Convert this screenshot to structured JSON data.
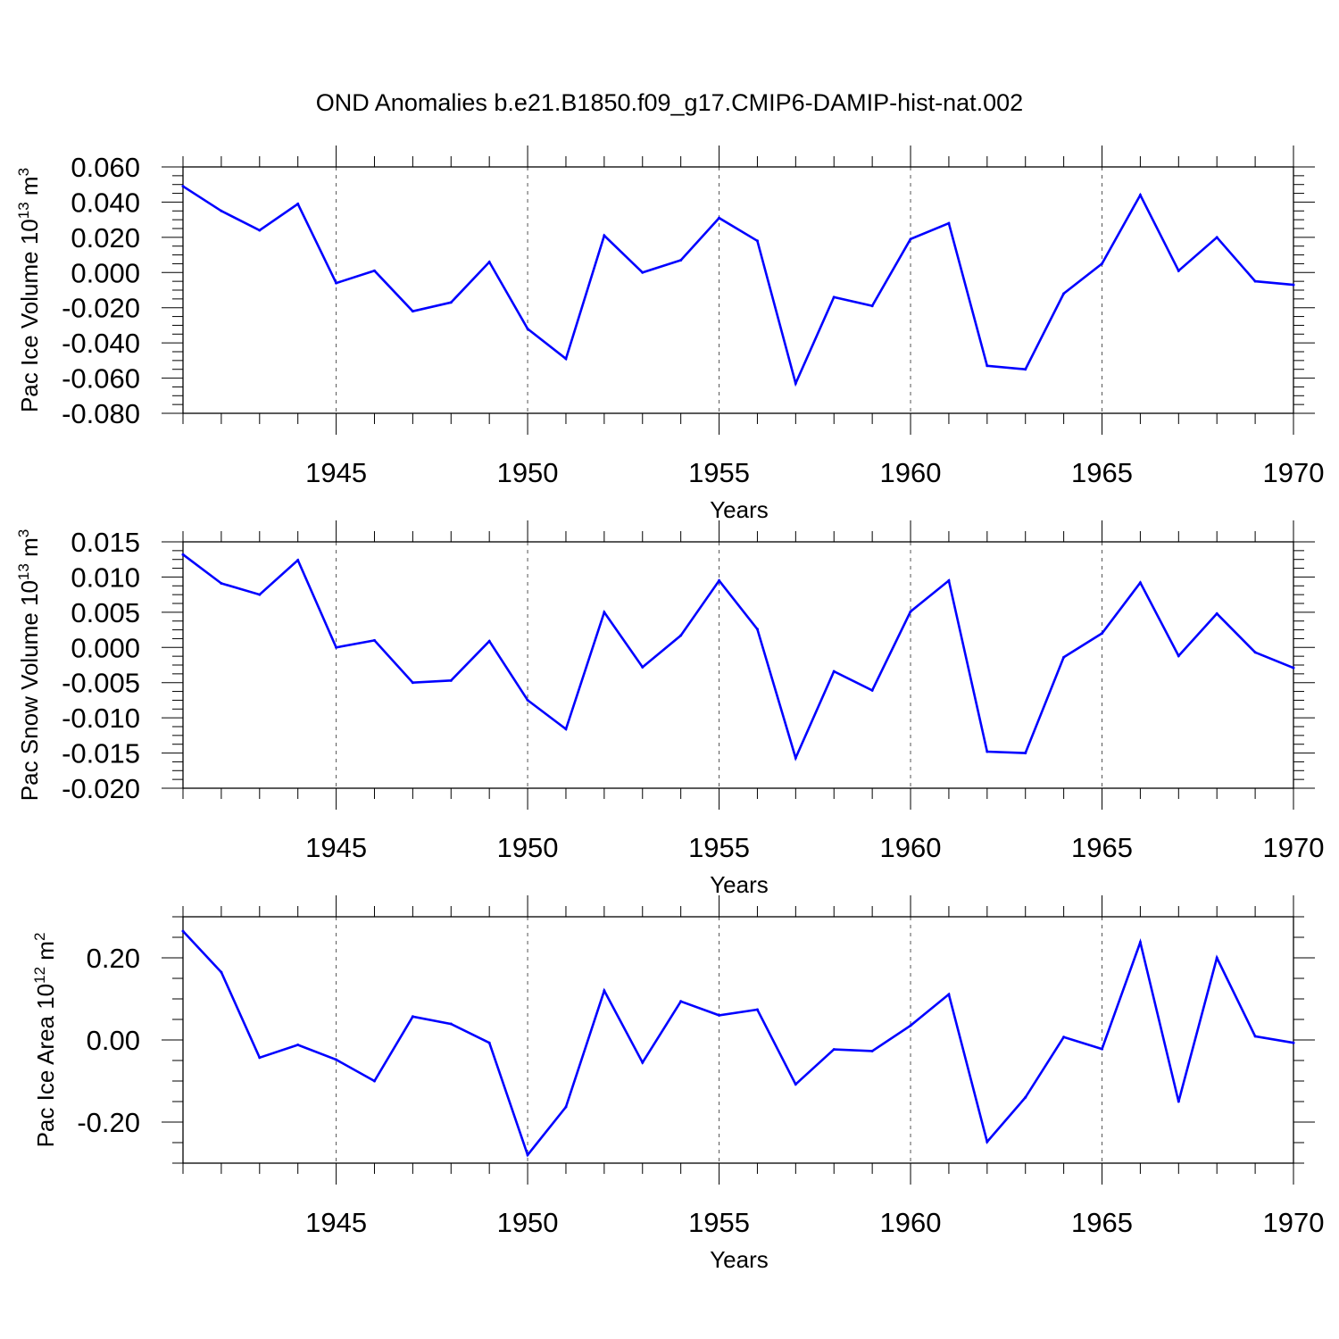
{
  "title": "OND Anomalies b.e21.B1850.f09_g17.CMIP6-DAMIP-hist-nat.002",
  "chart_data": [
    {
      "type": "line",
      "name": "pac-ice-volume",
      "ylabel_main": "Pac Ice Volume 10",
      "ylabel_exp": "13",
      "ylabel_unit": " m",
      "ylabel_unit_exp": "3",
      "xlabel": "Years",
      "xlim": [
        1941,
        1970
      ],
      "ylim": [
        -0.08,
        0.06
      ],
      "y_major_ticks": [
        0.06,
        0.04,
        0.02,
        0.0,
        -0.02,
        -0.04,
        -0.06,
        -0.08
      ],
      "y_tick_labels": [
        "0.060",
        "0.040",
        "0.020",
        "0.000",
        "-0.020",
        "-0.040",
        "-0.060",
        "-0.080"
      ],
      "y_minor_step": 0.005,
      "x_major_ticks": [
        1945,
        1950,
        1955,
        1960,
        1965,
        1970
      ],
      "x_tick_labels": [
        "1945",
        "1950",
        "1955",
        "1960",
        "1965",
        "1970"
      ],
      "x_grid": [
        1945,
        1950,
        1955,
        1960,
        1965
      ],
      "series_color": "#0000ff",
      "x": [
        1941,
        1942,
        1943,
        1944,
        1945,
        1946,
        1947,
        1948,
        1949,
        1950,
        1951,
        1952,
        1953,
        1954,
        1955,
        1956,
        1957,
        1958,
        1959,
        1960,
        1961,
        1962,
        1963,
        1964,
        1965,
        1966,
        1967,
        1968,
        1969,
        1970
      ],
      "values": [
        0.049,
        0.035,
        0.024,
        0.039,
        -0.006,
        0.001,
        -0.022,
        -0.017,
        0.006,
        -0.032,
        -0.049,
        0.021,
        0.0,
        0.007,
        0.031,
        0.018,
        -0.063,
        -0.014,
        -0.019,
        0.019,
        0.028,
        -0.053,
        -0.055,
        -0.012,
        0.005,
        0.044,
        0.001,
        0.02,
        -0.005,
        -0.007
      ]
    },
    {
      "type": "line",
      "name": "pac-snow-volume",
      "ylabel_main": "Pac Snow Volume 10",
      "ylabel_exp": "13",
      "ylabel_unit": " m",
      "ylabel_unit_exp": "3",
      "xlabel": "Years",
      "xlim": [
        1941,
        1970
      ],
      "ylim": [
        -0.02,
        0.015
      ],
      "y_major_ticks": [
        0.015,
        0.01,
        0.005,
        0.0,
        -0.005,
        -0.01,
        -0.015,
        -0.02
      ],
      "y_tick_labels": [
        "0.015",
        "0.010",
        "0.005",
        "0.000",
        "-0.005",
        "-0.010",
        "-0.015",
        "-0.020"
      ],
      "y_minor_step": 0.00125,
      "x_major_ticks": [
        1945,
        1950,
        1955,
        1960,
        1965,
        1970
      ],
      "x_tick_labels": [
        "1945",
        "1950",
        "1955",
        "1960",
        "1965",
        "1970"
      ],
      "x_grid": [
        1945,
        1950,
        1955,
        1960,
        1965
      ],
      "series_color": "#0000ff",
      "x": [
        1941,
        1942,
        1943,
        1944,
        1945,
        1946,
        1947,
        1948,
        1949,
        1950,
        1951,
        1952,
        1953,
        1954,
        1955,
        1956,
        1957,
        1958,
        1959,
        1960,
        1961,
        1962,
        1963,
        1964,
        1965,
        1966,
        1967,
        1968,
        1969,
        1970
      ],
      "values": [
        0.0132,
        0.0091,
        0.0075,
        0.0124,
        0.0,
        0.001,
        -0.005,
        -0.0047,
        0.0009,
        -0.0075,
        -0.0116,
        0.005,
        -0.0028,
        0.0017,
        0.0095,
        0.0026,
        -0.0157,
        -0.0034,
        -0.0061,
        0.0051,
        0.0095,
        -0.0148,
        -0.015,
        -0.0014,
        0.002,
        0.0092,
        -0.0012,
        0.0048,
        -0.0007,
        -0.0029
      ]
    },
    {
      "type": "line",
      "name": "pac-ice-area",
      "ylabel_main": "Pac Ice Area 10",
      "ylabel_exp": "12",
      "ylabel_unit": " m",
      "ylabel_unit_exp": "2",
      "xlabel": "Years",
      "xlim": [
        1941,
        1970
      ],
      "ylim": [
        -0.3,
        0.3
      ],
      "y_major_ticks": [
        0.2,
        0.0,
        -0.2
      ],
      "y_tick_labels": [
        "0.20",
        "0.00",
        "-0.20"
      ],
      "y_minor_step": 0.05,
      "x_major_ticks": [
        1945,
        1950,
        1955,
        1960,
        1965,
        1970
      ],
      "x_tick_labels": [
        "1945",
        "1950",
        "1955",
        "1960",
        "1965",
        "1970"
      ],
      "x_grid": [
        1945,
        1950,
        1955,
        1960,
        1965
      ],
      "series_color": "#0000ff",
      "x": [
        1941,
        1942,
        1943,
        1944,
        1945,
        1946,
        1947,
        1948,
        1949,
        1950,
        1951,
        1952,
        1953,
        1954,
        1955,
        1956,
        1957,
        1958,
        1959,
        1960,
        1961,
        1962,
        1963,
        1964,
        1965,
        1966,
        1967,
        1968,
        1969,
        1970
      ],
      "values": [
        0.265,
        0.165,
        -0.043,
        -0.012,
        -0.048,
        -0.1,
        0.057,
        0.039,
        -0.007,
        -0.28,
        -0.163,
        0.12,
        -0.055,
        0.094,
        0.06,
        0.074,
        -0.108,
        -0.023,
        -0.027,
        0.035,
        0.111,
        -0.248,
        -0.14,
        0.007,
        -0.022,
        0.238,
        -0.15,
        0.2,
        0.009,
        -0.007
      ]
    }
  ]
}
